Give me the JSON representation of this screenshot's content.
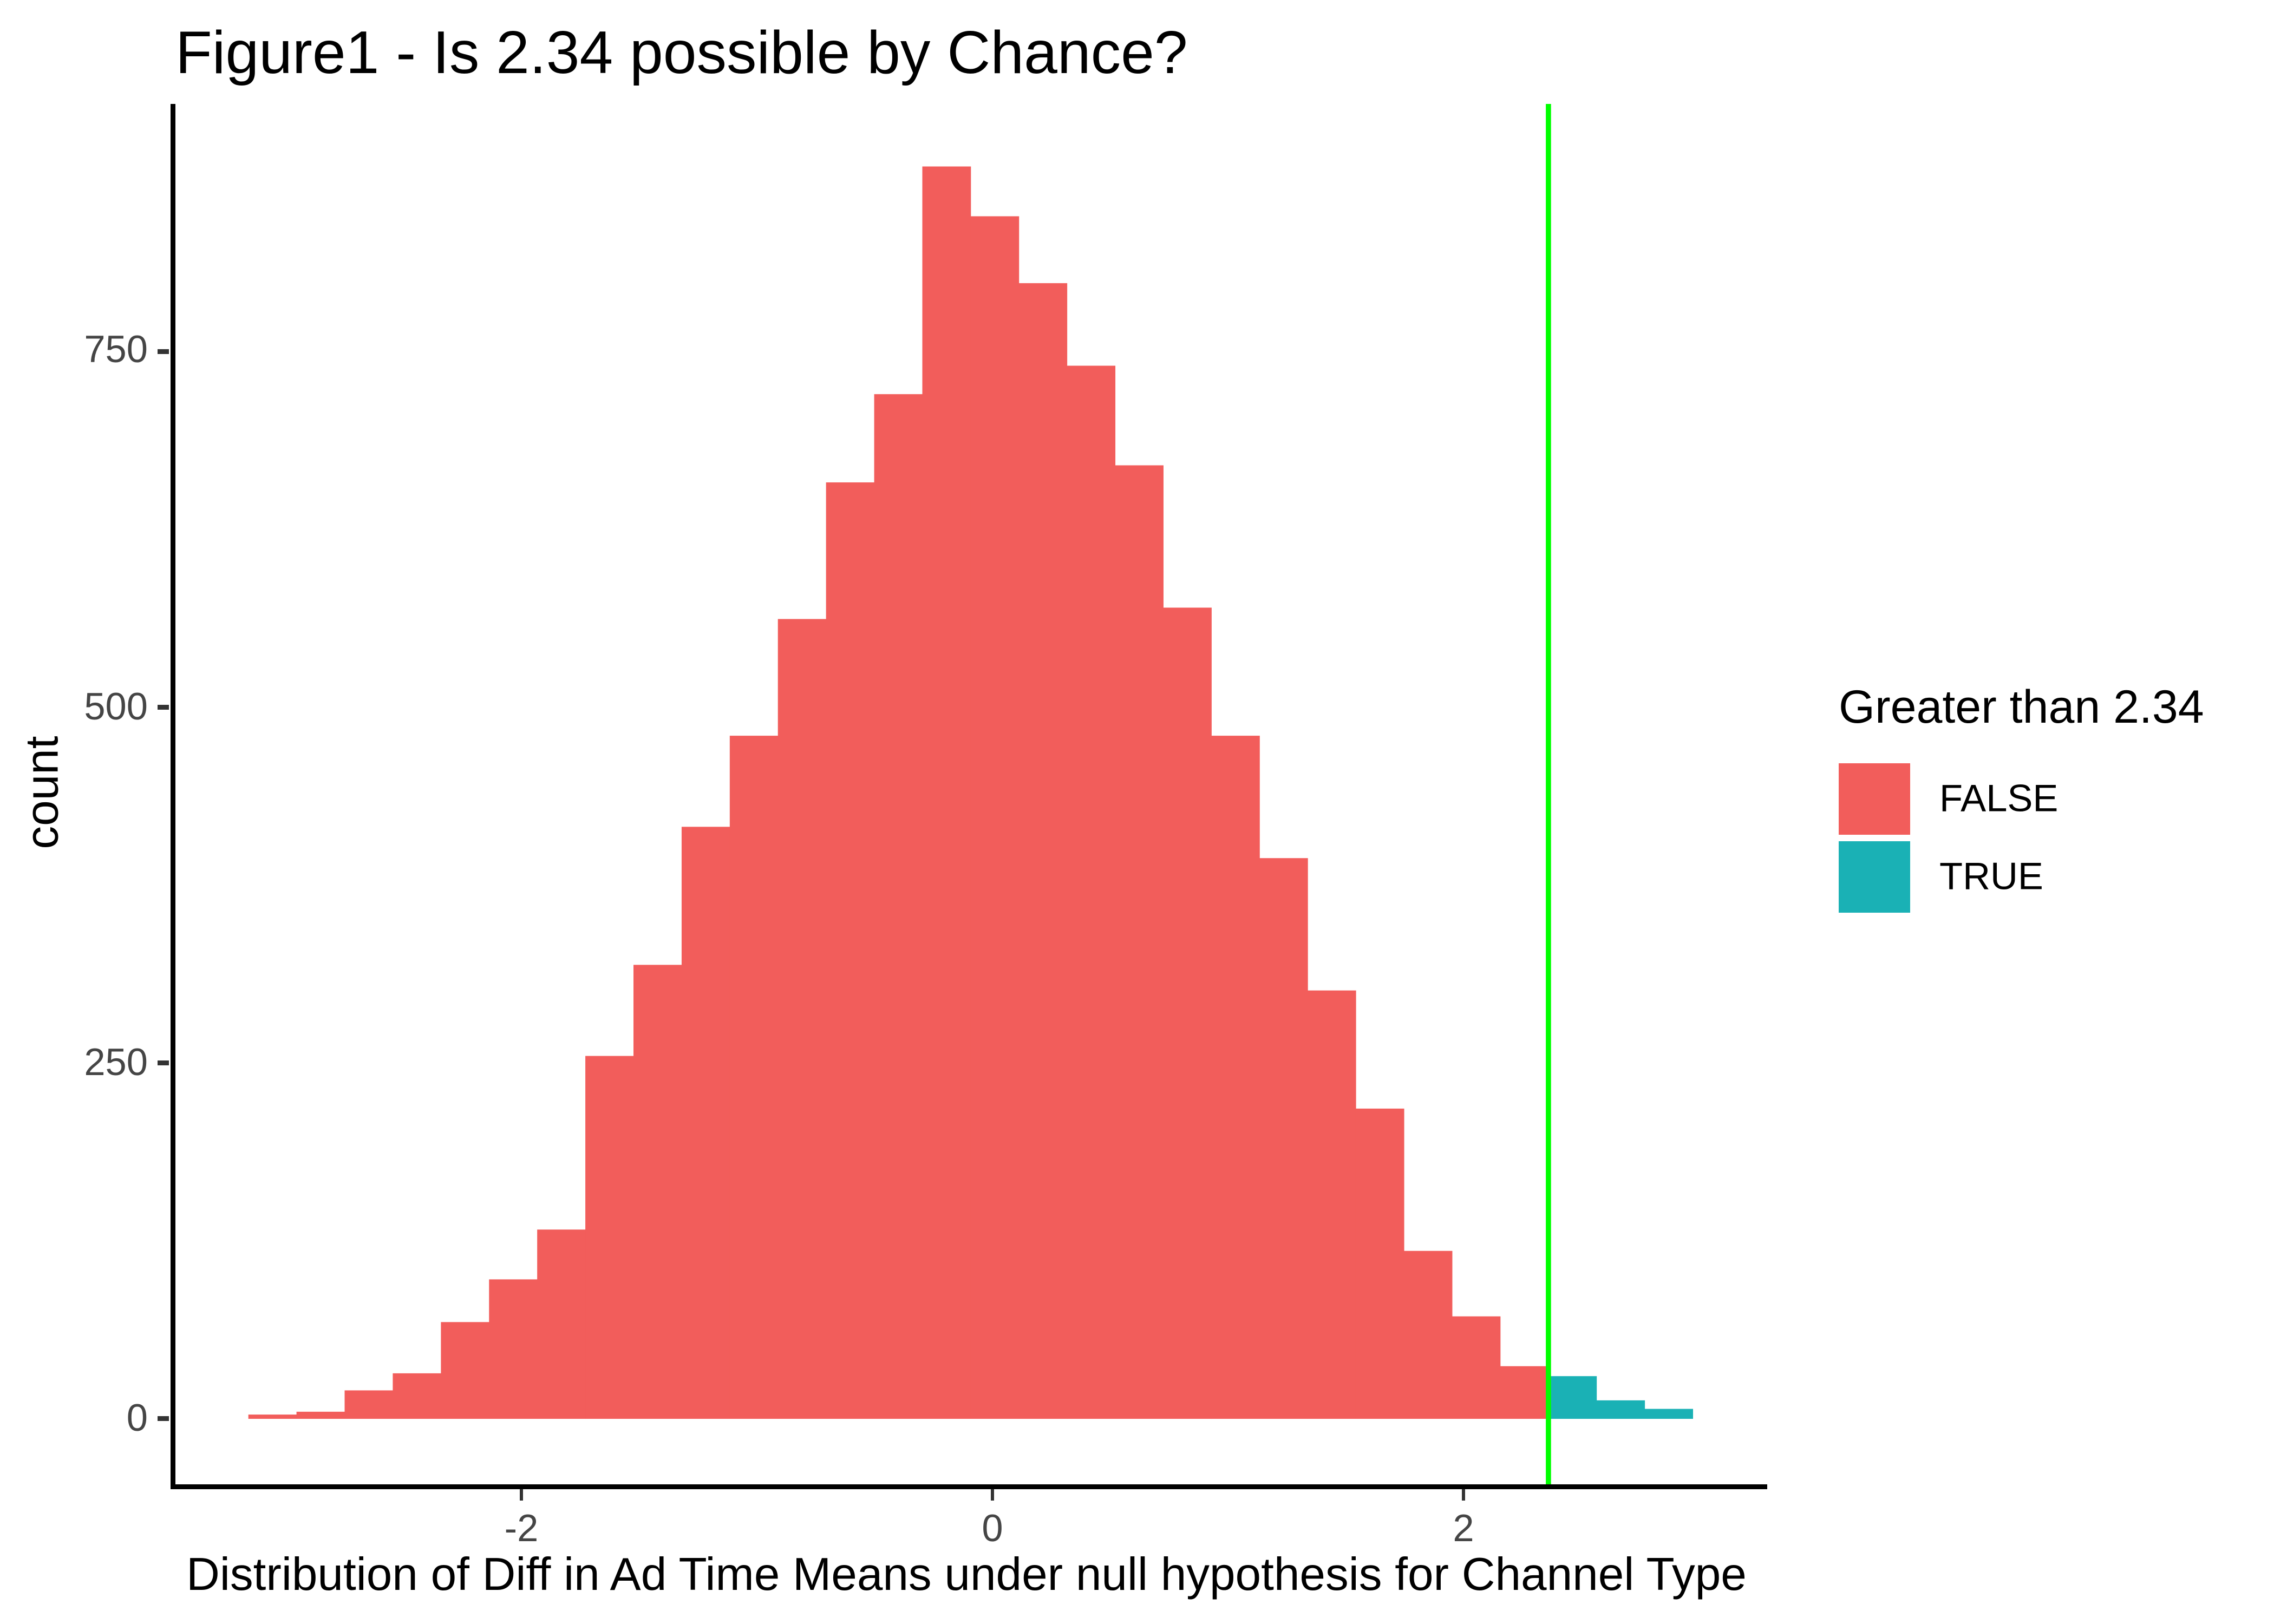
{
  "title": "Figure1 - Is 2.34 possible by Chance?",
  "x_axis": {
    "label": "Distribution of Diff in Ad Time Means under null hypothesis for Channel Type",
    "tick_values": [
      -2,
      0,
      2
    ],
    "tick_labels": [
      "-2",
      "0",
      "2"
    ]
  },
  "y_axis": {
    "label": "count",
    "tick_values": [
      0,
      250,
      500,
      750
    ],
    "tick_labels": [
      "0",
      "250",
      "500",
      "750"
    ]
  },
  "legend": {
    "title": "Greater than 2.34",
    "items": [
      {
        "label": "FALSE",
        "color": "#F25D5B"
      },
      {
        "label": "TRUE",
        "color": "#1AB1B5"
      }
    ]
  },
  "colors": {
    "false_bar": "#F25D5B",
    "true_bar": "#1AB1B5",
    "threshold_line": "#00FF00",
    "axis_line": "#000000",
    "tick_mark": "#333333",
    "tick_text": "#454545",
    "title_text": "#000000"
  },
  "chart_data": {
    "type": "bar",
    "subtype": "histogram",
    "title": "Figure1 - Is 2.34 possible by Chance?",
    "xlabel": "Distribution of Diff in Ad Time Means under null hypothesis for Channel Type",
    "ylabel": "count",
    "grid": false,
    "legend_position": "right",
    "xlim": [
      -3.49,
      3.26
    ],
    "ylim": [
      0,
      924
    ],
    "bins": {
      "start": -3.179,
      "width": 0.2044,
      "n": 30
    },
    "values": [
      3,
      5,
      20,
      32,
      68,
      98,
      133,
      255,
      319,
      416,
      480,
      562,
      658,
      720,
      880,
      845,
      798,
      740,
      670,
      570,
      480,
      394,
      301,
      218,
      118,
      72,
      37,
      30,
      13,
      7
    ],
    "bin_groups": [
      "FALSE",
      "FALSE",
      "FALSE",
      "FALSE",
      "FALSE",
      "FALSE",
      "FALSE",
      "FALSE",
      "FALSE",
      "FALSE",
      "FALSE",
      "FALSE",
      "FALSE",
      "FALSE",
      "FALSE",
      "FALSE",
      "FALSE",
      "FALSE",
      "FALSE",
      "FALSE",
      "FALSE",
      "FALSE",
      "FALSE",
      "FALSE",
      "FALSE",
      "FALSE",
      "FALSE",
      "TRUE",
      "TRUE",
      "TRUE"
    ],
    "series": [
      {
        "name": "FALSE",
        "values": [
          3,
          5,
          20,
          32,
          68,
          98,
          133,
          255,
          319,
          416,
          480,
          562,
          658,
          720,
          880,
          845,
          798,
          740,
          670,
          570,
          480,
          394,
          301,
          218,
          118,
          72,
          37,
          0,
          0,
          0
        ]
      },
      {
        "name": "TRUE",
        "values": [
          0,
          0,
          0,
          0,
          0,
          0,
          0,
          0,
          0,
          0,
          0,
          0,
          0,
          0,
          0,
          0,
          0,
          0,
          0,
          0,
          0,
          0,
          0,
          0,
          0,
          0,
          0,
          30,
          13,
          7
        ]
      }
    ],
    "threshold_line": {
      "x": 2.34,
      "color": "#00FF00"
    }
  }
}
